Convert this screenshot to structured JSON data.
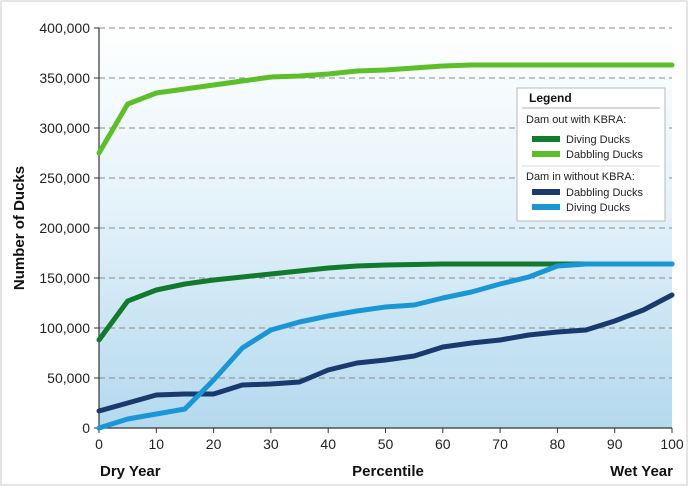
{
  "chart_data": {
    "type": "line",
    "ylabel": "Number of Ducks",
    "xlabel": "Percentile",
    "x_end_labels": {
      "left": "Dry Year",
      "right": "Wet Year"
    },
    "x": [
      0,
      5,
      10,
      15,
      20,
      25,
      30,
      35,
      40,
      45,
      50,
      55,
      60,
      65,
      70,
      75,
      80,
      85,
      90,
      95,
      100
    ],
    "x_ticks": [
      "0",
      "10",
      "20",
      "30",
      "40",
      "50",
      "60",
      "70",
      "80",
      "90",
      "100"
    ],
    "y_ticks": [
      "0",
      "50,000",
      "100,000",
      "150,000",
      "200,000",
      "250,000",
      "300,000",
      "350,000",
      "400,000"
    ],
    "xlim": [
      0,
      100
    ],
    "ylim": [
      0,
      400000
    ],
    "grid": "horizontal dashed",
    "legend": {
      "title": "Legend",
      "placement": "top-right",
      "groups": [
        {
          "label": "Dam out with KBRA:",
          "entries": [
            0,
            1
          ]
        },
        {
          "label": "Dam in without KBRA:",
          "entries": [
            2,
            3
          ]
        }
      ]
    },
    "series": [
      {
        "name": "Diving Ducks",
        "color": "#117a2e",
        "values": [
          88000,
          127000,
          138000,
          144000,
          148000,
          151000,
          154000,
          157000,
          160000,
          162000,
          163000,
          163500,
          164000,
          164000,
          164000,
          164000,
          164000,
          164000,
          164000,
          164000,
          164000
        ]
      },
      {
        "name": "Dabbling Ducks",
        "color": "#5cbf2a",
        "values": [
          275000,
          324000,
          335000,
          339000,
          343000,
          347000,
          351000,
          352000,
          354000,
          357000,
          358000,
          360000,
          362000,
          363000,
          363000,
          363000,
          363000,
          363000,
          363000,
          363000,
          363000
        ]
      },
      {
        "name": "Dabbling Ducks",
        "color": "#1a3a6e",
        "values": [
          17000,
          25000,
          33000,
          34000,
          34000,
          43000,
          44000,
          46000,
          58000,
          65000,
          68000,
          72000,
          81000,
          85000,
          88000,
          93000,
          96000,
          98000,
          107000,
          118000,
          133000
        ]
      },
      {
        "name": "Diving Ducks",
        "color": "#1a96d6",
        "values": [
          0,
          9000,
          14000,
          19000,
          48000,
          80000,
          98000,
          106000,
          112000,
          117000,
          121000,
          123000,
          130000,
          136000,
          144000,
          151000,
          162000,
          164000,
          164000,
          164000,
          164000
        ]
      }
    ]
  }
}
